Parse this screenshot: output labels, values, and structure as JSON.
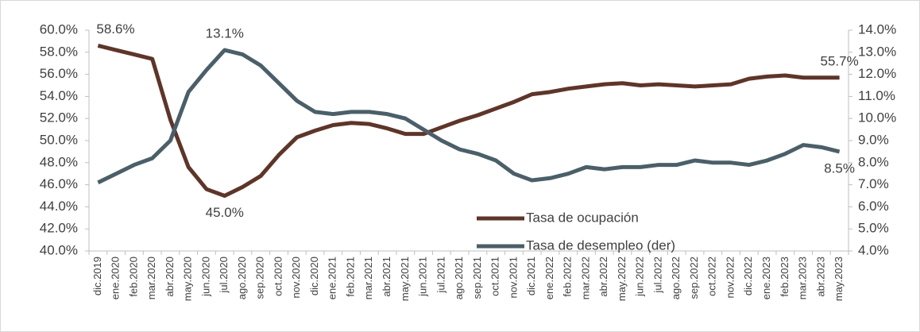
{
  "chart_data": {
    "type": "line",
    "categories": [
      "dic.2019",
      "ene.2020",
      "feb.2020",
      "mar.2020",
      "abr.2020",
      "may.2020",
      "jun.2020",
      "jul.2020",
      "ago.2020",
      "sep.2020",
      "oct.2020",
      "nov.2020",
      "dic.2020",
      "ene.2021",
      "feb.2021",
      "mar.2021",
      "abr.2021",
      "may.2021",
      "jun.2021",
      "jul.2021",
      "ago.2021",
      "sep.2021",
      "oct.2021",
      "nov.2021",
      "dic.2021",
      "ene.2022",
      "feb.2022",
      "mar.2022",
      "abr.2022",
      "may.2022",
      "jun.2022",
      "jul.2022",
      "ago.2022",
      "sep.2022",
      "oct.2022",
      "nov.2022",
      "dic.2022",
      "ene.2023",
      "feb.2023",
      "mar.2023",
      "abr.2023",
      "may.2023"
    ],
    "series": [
      {
        "name": "Tasa de ocupación",
        "color": "#5e3529",
        "axis": "y",
        "values": [
          58.6,
          58.2,
          57.8,
          57.4,
          51.9,
          47.6,
          45.6,
          45.0,
          45.8,
          46.8,
          48.7,
          50.3,
          50.9,
          51.4,
          51.6,
          51.5,
          51.1,
          50.6,
          50.6,
          51.2,
          51.8,
          52.3,
          52.9,
          53.5,
          54.2,
          54.4,
          54.7,
          54.9,
          55.1,
          55.2,
          55.0,
          55.1,
          55.0,
          54.9,
          55.0,
          55.1,
          55.6,
          55.8,
          55.9,
          55.7,
          55.7,
          55.7
        ],
        "value_labels": [
          "58.6%",
          null,
          null,
          null,
          null,
          null,
          null,
          "45.0%",
          null,
          null,
          null,
          null,
          null,
          null,
          null,
          null,
          null,
          null,
          null,
          null,
          null,
          null,
          null,
          null,
          null,
          null,
          null,
          null,
          null,
          null,
          null,
          null,
          null,
          null,
          null,
          null,
          null,
          null,
          null,
          null,
          null,
          "55.7%"
        ]
      },
      {
        "name": "Tasa de desempleo (der)",
        "color": "#4b5f69",
        "axis": "y2",
        "values": [
          7.1,
          7.5,
          7.9,
          8.2,
          9.0,
          11.2,
          12.2,
          13.1,
          12.9,
          12.4,
          11.6,
          10.8,
          10.3,
          10.2,
          10.3,
          10.3,
          10.2,
          10.0,
          9.5,
          9.0,
          8.6,
          8.4,
          8.1,
          7.5,
          7.2,
          7.3,
          7.5,
          7.8,
          7.7,
          7.8,
          7.8,
          7.9,
          7.9,
          8.1,
          8.0,
          8.0,
          7.9,
          8.1,
          8.4,
          8.8,
          8.7,
          8.5
        ],
        "value_labels": [
          null,
          null,
          null,
          null,
          null,
          null,
          null,
          "13.1%",
          null,
          null,
          null,
          null,
          null,
          null,
          null,
          null,
          null,
          null,
          null,
          null,
          null,
          null,
          null,
          null,
          null,
          null,
          null,
          null,
          null,
          null,
          null,
          null,
          null,
          null,
          null,
          null,
          null,
          null,
          null,
          null,
          null,
          "8.5%"
        ]
      }
    ],
    "ylim": [
      40,
      60
    ],
    "yticks": [
      {
        "value": 40,
        "label": "40.0%"
      },
      {
        "value": 42,
        "label": "42.0%"
      },
      {
        "value": 44,
        "label": "44.0%"
      },
      {
        "value": 46,
        "label": "46.0%"
      },
      {
        "value": 48,
        "label": "48.0%"
      },
      {
        "value": 50,
        "label": "50.0%"
      },
      {
        "value": 52,
        "label": "52.0%"
      },
      {
        "value": 54,
        "label": "54.0%"
      },
      {
        "value": 56,
        "label": "56.0%"
      },
      {
        "value": 58,
        "label": "58.0%"
      },
      {
        "value": 60,
        "label": "60.0%"
      }
    ],
    "y2lim": [
      4,
      14
    ],
    "y2ticks": [
      {
        "value": 4,
        "label": "4.0%"
      },
      {
        "value": 5,
        "label": "5.0%"
      },
      {
        "value": 6,
        "label": "6.0%"
      },
      {
        "value": 7,
        "label": "7.0%"
      },
      {
        "value": 8,
        "label": "8.0%"
      },
      {
        "value": 9,
        "label": "9.0%"
      },
      {
        "value": 10,
        "label": "10.0%"
      },
      {
        "value": 11,
        "label": "11.0%"
      },
      {
        "value": 12,
        "label": "12.0%"
      },
      {
        "value": 13,
        "label": "13.0%"
      },
      {
        "value": 14,
        "label": "14.0%"
      }
    ],
    "grid": false,
    "legend": "bottom-center"
  }
}
